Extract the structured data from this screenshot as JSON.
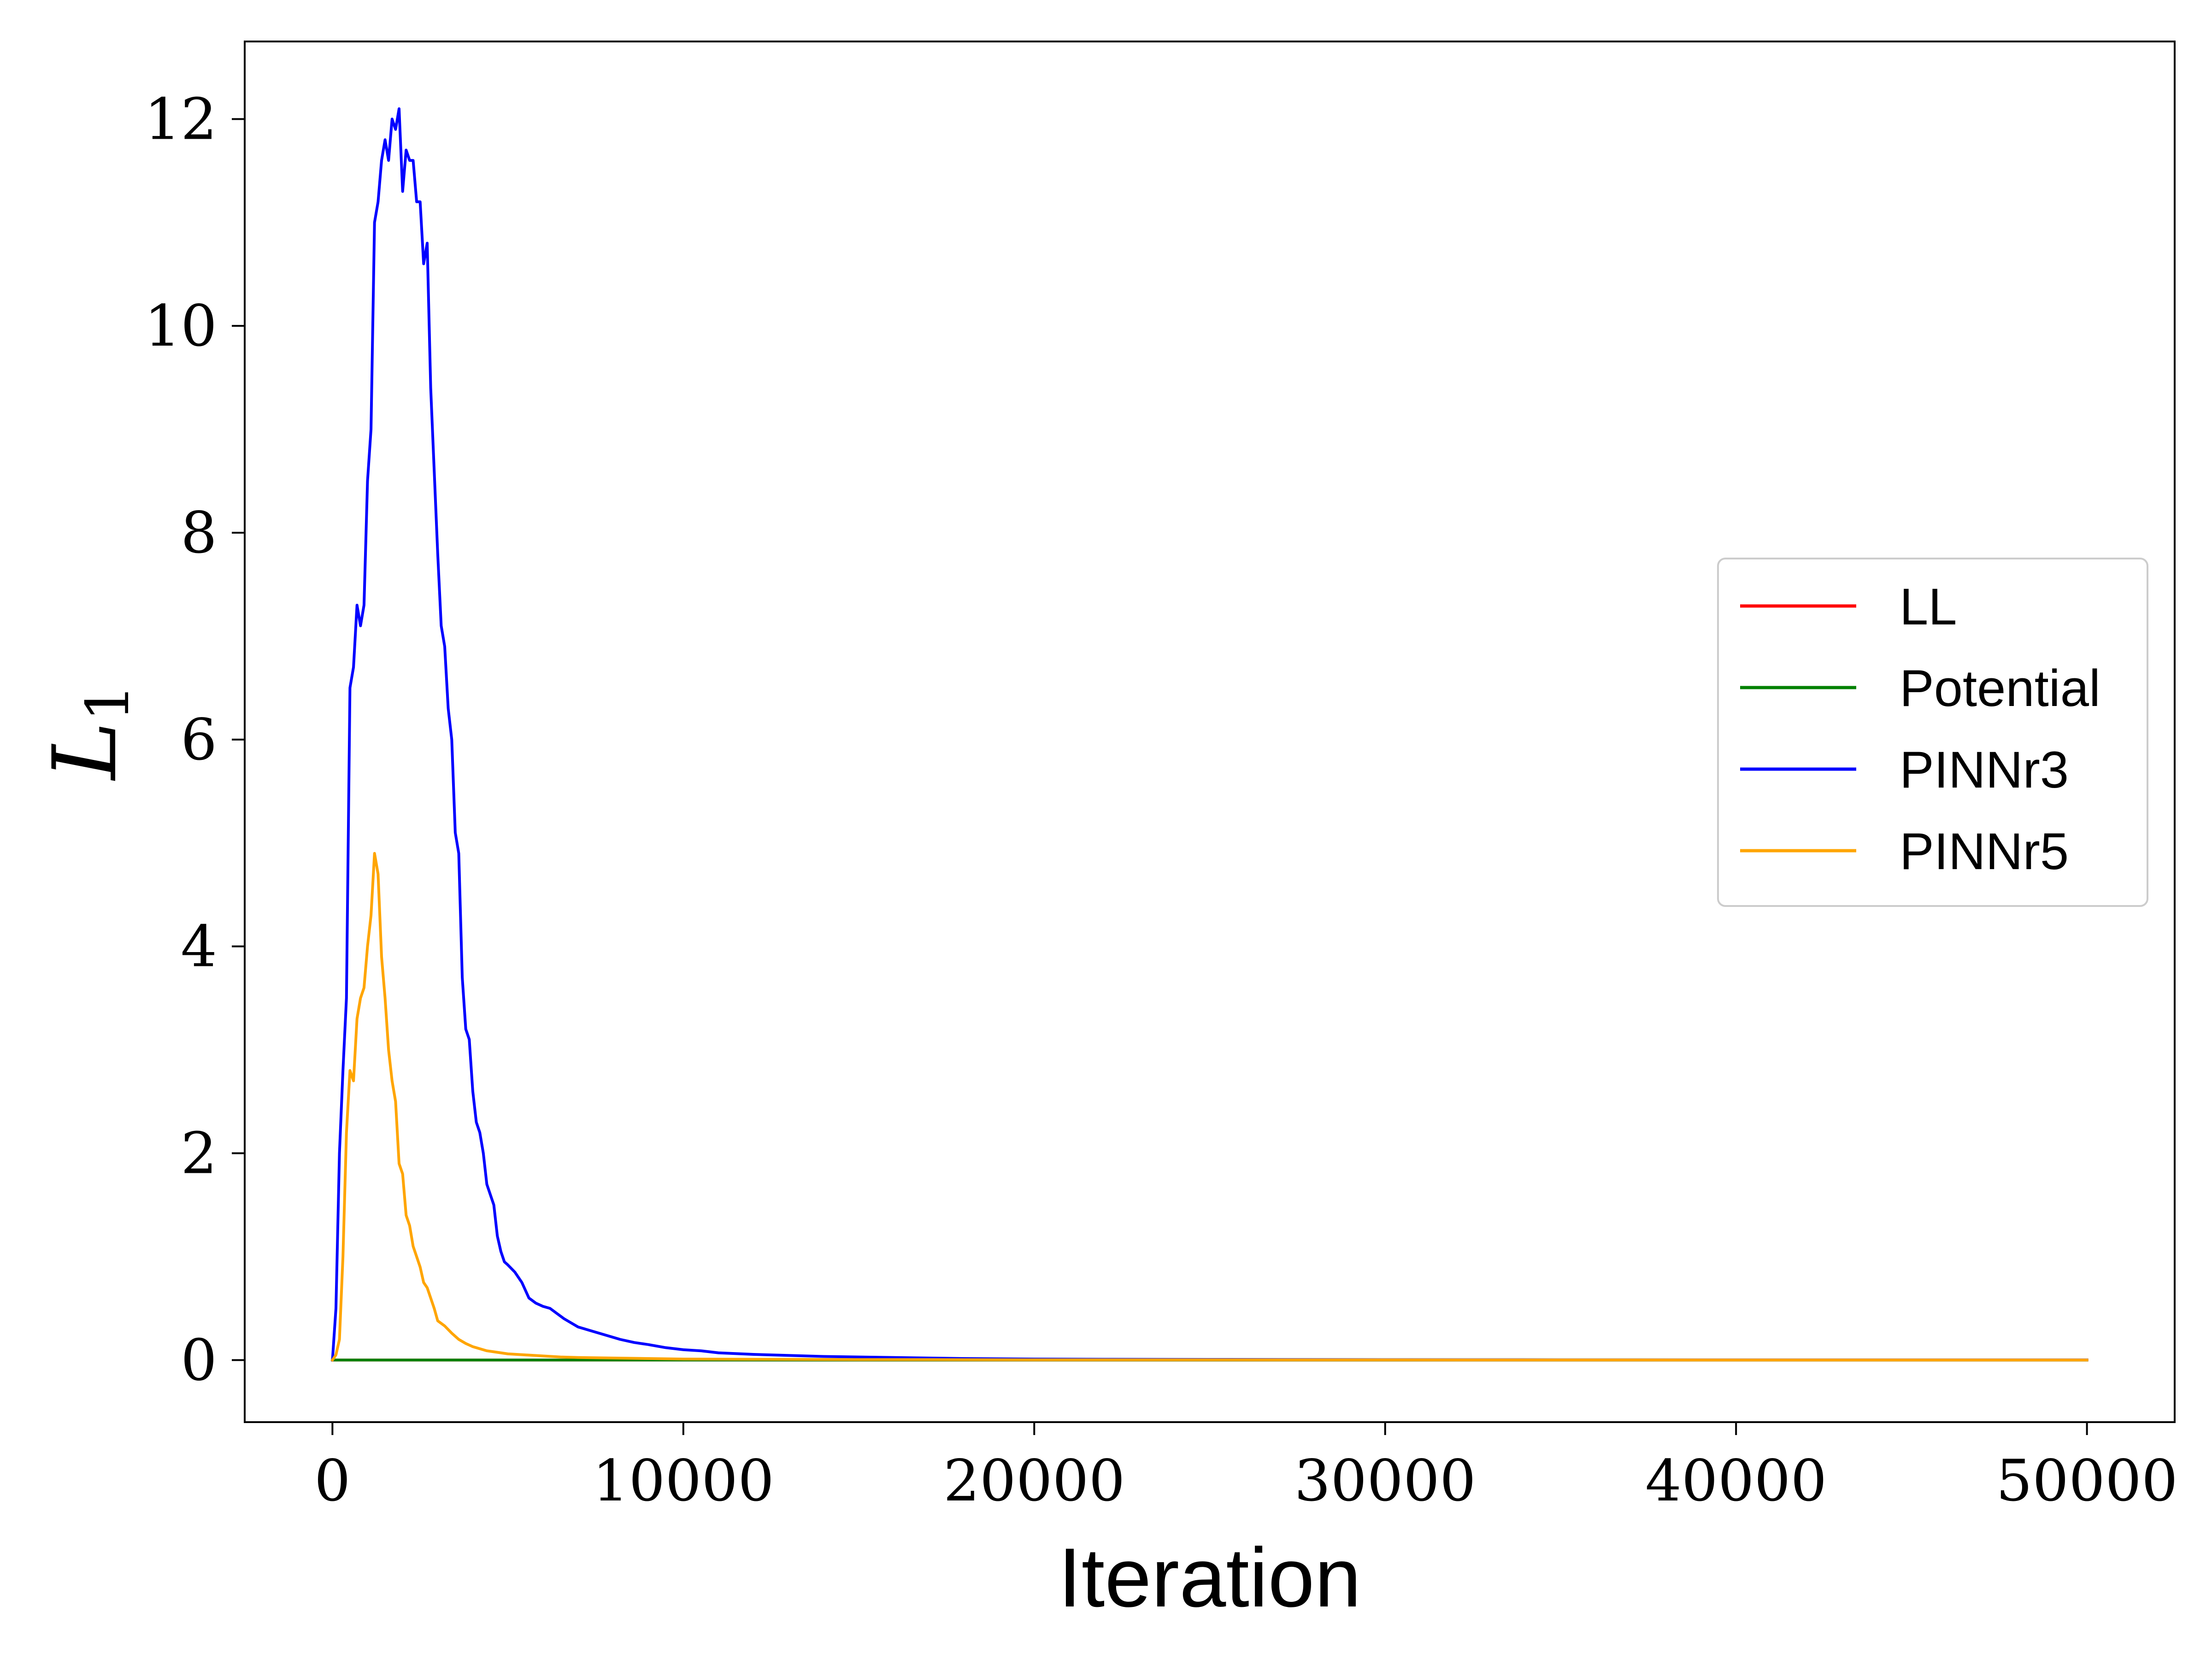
{
  "chart_data": {
    "type": "line",
    "title": "",
    "xlabel": "Iteration",
    "ylabel": "L",
    "ylabel_subscript": "1",
    "xlim": [
      -2500,
      52500
    ],
    "ylim": [
      -0.6,
      12.75
    ],
    "xticks": [
      0,
      10000,
      20000,
      30000,
      40000,
      50000
    ],
    "xtick_labels": [
      "0",
      "10000",
      "20000",
      "30000",
      "40000",
      "50000"
    ],
    "yticks": [
      0,
      2,
      4,
      6,
      8,
      10,
      12
    ],
    "ytick_labels": [
      "0",
      "2",
      "4",
      "6",
      "8",
      "10",
      "12"
    ],
    "grid": false,
    "legend_position": "center-right",
    "series": [
      {
        "name": "LL",
        "color": "#ff0000",
        "x": [
          0,
          50000
        ],
        "y": [
          0,
          0
        ]
      },
      {
        "name": "Potential",
        "color": "#008000",
        "x": [
          0,
          50000
        ],
        "y": [
          0,
          0
        ]
      },
      {
        "name": "PINNr3",
        "color": "#0000ff",
        "x": [
          0,
          100,
          200,
          300,
          400,
          500,
          600,
          700,
          800,
          900,
          1000,
          1100,
          1200,
          1300,
          1400,
          1500,
          1600,
          1700,
          1800,
          1900,
          2000,
          2100,
          2200,
          2300,
          2400,
          2500,
          2600,
          2700,
          2800,
          2900,
          3000,
          3100,
          3200,
          3300,
          3400,
          3500,
          3600,
          3700,
          3800,
          3900,
          4000,
          4100,
          4200,
          4300,
          4400,
          4500,
          4600,
          4700,
          4800,
          4900,
          5000,
          5200,
          5400,
          5600,
          5800,
          6000,
          6200,
          6400,
          6600,
          6800,
          7000,
          7400,
          7800,
          8200,
          8600,
          9000,
          9500,
          10000,
          10500,
          11000,
          12000,
          13000,
          14000,
          15000,
          16000,
          17000,
          18000,
          20000,
          22000,
          25000,
          30000,
          35000,
          40000,
          45000,
          50000
        ],
        "y": [
          0.0,
          0.5,
          2.0,
          2.8,
          3.5,
          6.5,
          6.7,
          7.3,
          7.1,
          7.3,
          8.5,
          9.0,
          11.0,
          11.2,
          11.6,
          11.8,
          11.6,
          12.0,
          11.9,
          12.1,
          11.3,
          11.7,
          11.6,
          11.6,
          11.2,
          11.2,
          10.6,
          10.8,
          9.4,
          8.6,
          7.8,
          7.1,
          6.9,
          6.3,
          6.0,
          5.1,
          4.9,
          3.7,
          3.2,
          3.1,
          2.6,
          2.3,
          2.2,
          2.0,
          1.7,
          1.6,
          1.5,
          1.2,
          1.05,
          0.95,
          0.92,
          0.85,
          0.75,
          0.6,
          0.55,
          0.52,
          0.5,
          0.45,
          0.4,
          0.36,
          0.32,
          0.28,
          0.24,
          0.2,
          0.17,
          0.15,
          0.12,
          0.1,
          0.09,
          0.07,
          0.055,
          0.045,
          0.035,
          0.03,
          0.025,
          0.02,
          0.015,
          0.01,
          0.008,
          0.006,
          0.004,
          0.003,
          0.002,
          0.002,
          0.002
        ]
      },
      {
        "name": "PINNr5",
        "color": "#ffa500",
        "x": [
          0,
          100,
          200,
          300,
          400,
          500,
          600,
          700,
          800,
          900,
          1000,
          1100,
          1200,
          1300,
          1400,
          1500,
          1600,
          1700,
          1800,
          1900,
          2000,
          2100,
          2200,
          2300,
          2400,
          2500,
          2600,
          2700,
          2800,
          2900,
          3000,
          3200,
          3400,
          3600,
          3800,
          4000,
          4200,
          4400,
          4600,
          5000,
          5500,
          6000,
          6500,
          7000,
          8000,
          9000,
          10000,
          12000,
          15000,
          20000,
          30000,
          40000,
          50000
        ],
        "y": [
          0.0,
          0.05,
          0.2,
          1.0,
          2.2,
          2.8,
          2.7,
          3.3,
          3.5,
          3.6,
          4.0,
          4.3,
          4.9,
          4.7,
          3.9,
          3.5,
          3.0,
          2.7,
          2.5,
          1.9,
          1.8,
          1.4,
          1.3,
          1.1,
          1.0,
          0.9,
          0.75,
          0.7,
          0.6,
          0.5,
          0.38,
          0.33,
          0.26,
          0.2,
          0.16,
          0.13,
          0.11,
          0.09,
          0.08,
          0.06,
          0.05,
          0.04,
          0.03,
          0.025,
          0.02,
          0.015,
          0.01,
          0.008,
          0.005,
          0.003,
          0.002,
          0.001,
          0.001
        ]
      }
    ]
  }
}
